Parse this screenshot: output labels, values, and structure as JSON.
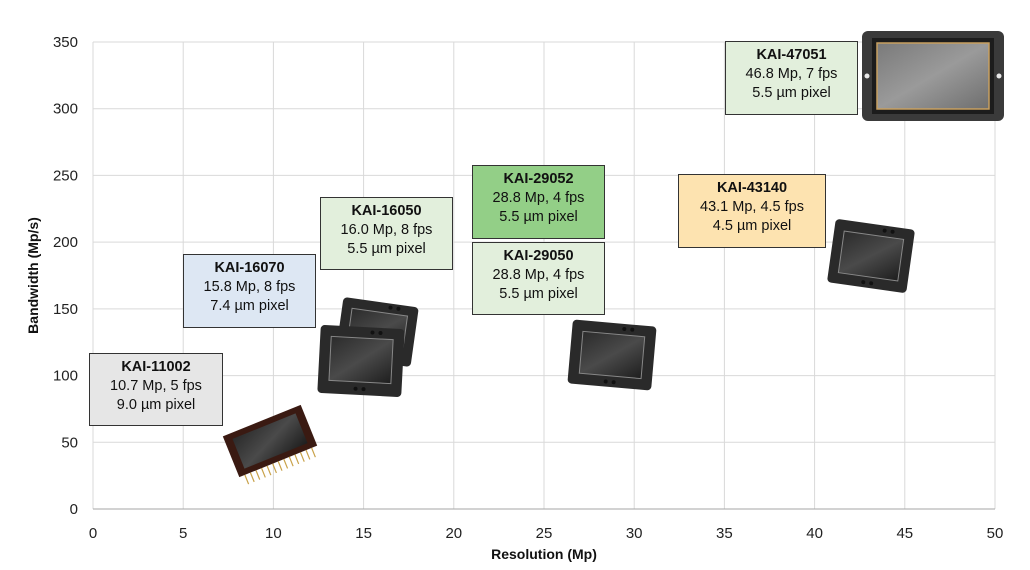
{
  "chart_data": {
    "type": "scatter",
    "title": "",
    "xlabel": "Resolution (Mp)",
    "ylabel": "Bandwidth (Mp/s)",
    "xlim": [
      0,
      50
    ],
    "ylim": [
      0,
      350
    ],
    "xticks": [
      0,
      5,
      10,
      15,
      20,
      25,
      30,
      35,
      40,
      45,
      50
    ],
    "yticks": [
      0,
      50,
      100,
      150,
      200,
      250,
      300,
      350
    ],
    "grid": true,
    "points": [
      {
        "x": 10.7,
        "y": 53.5
      },
      {
        "x": 15.8,
        "y": 126.4
      },
      {
        "x": 16.0,
        "y": 128.0
      },
      {
        "x": 28.8,
        "y": 115.2
      },
      {
        "x": 28.8,
        "y": 115.2
      },
      {
        "x": 43.1,
        "y": 194.0
      },
      {
        "x": 46.8,
        "y": 327.6
      }
    ],
    "annotations": [
      {
        "name": "KAI-11002",
        "line1": "10.7 Mp, 5 fps",
        "line2": "9.0 µm pixel",
        "color": "#e6e6e6"
      },
      {
        "name": "KAI-16070",
        "line1": "15.8 Mp, 8 fps",
        "line2": "7.4 µm pixel",
        "color": "#dde7f3"
      },
      {
        "name": "KAI-16050",
        "line1": "16.0 Mp, 8 fps",
        "line2": "5.5 µm pixel",
        "color": "#e2efdc"
      },
      {
        "name": "KAI-29052",
        "line1": "28.8 Mp, 4 fps",
        "line2": "5.5 µm pixel",
        "color": "#93cf87"
      },
      {
        "name": "KAI-29050",
        "line1": "28.8 Mp, 4 fps",
        "line2": "5.5 µm pixel",
        "color": "#e2efdc"
      },
      {
        "name": "KAI-43140",
        "line1": "43.1 Mp, 4.5 fps",
        "line2": "4.5 µm pixel",
        "color": "#fde3b0"
      },
      {
        "name": "KAI-47051",
        "line1": "46.8 Mp, 7 fps",
        "line2": "5.5 µm pixel",
        "color": "#e2efdc"
      }
    ]
  }
}
